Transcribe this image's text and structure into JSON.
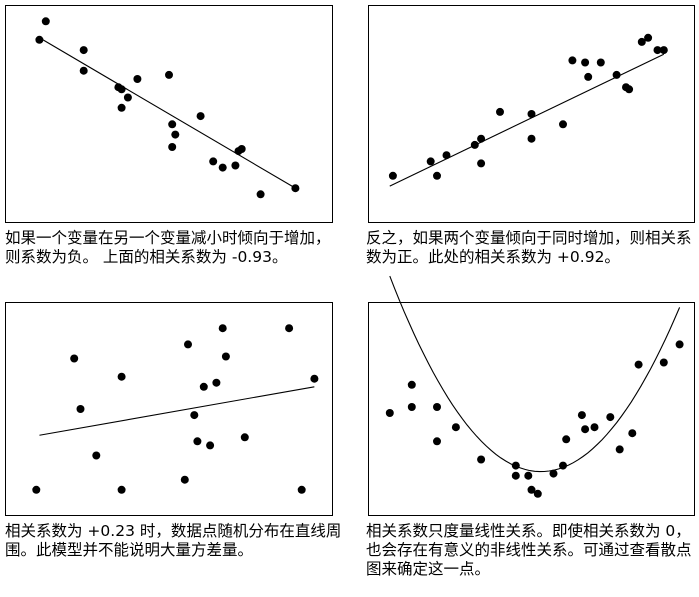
{
  "chart_data": [
    {
      "type": "scatter",
      "title": "",
      "xlim": [
        0,
        100
      ],
      "ylim": [
        0,
        100
      ],
      "grid": false,
      "points": [
        [
          9,
          86
        ],
        [
          11,
          95
        ],
        [
          23,
          81
        ],
        [
          23,
          71
        ],
        [
          34,
          63
        ],
        [
          35,
          62
        ],
        [
          35,
          53
        ],
        [
          37,
          58
        ],
        [
          40,
          67
        ],
        [
          50,
          69
        ],
        [
          51,
          45
        ],
        [
          52,
          40
        ],
        [
          51,
          34
        ],
        [
          60,
          49
        ],
        [
          64,
          27
        ],
        [
          67,
          24
        ],
        [
          71,
          25
        ],
        [
          72,
          32
        ],
        [
          73,
          33
        ],
        [
          79,
          11
        ],
        [
          90,
          14
        ]
      ],
      "fit": {
        "kind": "linear",
        "x": [
          9,
          90
        ],
        "y": [
          87,
          14
        ]
      }
    },
    {
      "type": "scatter",
      "title": "",
      "xlim": [
        0,
        100
      ],
      "ylim": [
        0,
        100
      ],
      "grid": false,
      "points": [
        [
          6,
          20
        ],
        [
          18,
          27
        ],
        [
          20,
          20
        ],
        [
          23,
          30
        ],
        [
          32,
          35
        ],
        [
          34,
          38
        ],
        [
          34,
          26
        ],
        [
          40,
          51
        ],
        [
          50,
          50
        ],
        [
          50,
          38
        ],
        [
          60,
          45
        ],
        [
          63,
          76
        ],
        [
          67,
          75
        ],
        [
          68,
          68
        ],
        [
          72,
          75
        ],
        [
          77,
          69
        ],
        [
          80,
          63
        ],
        [
          81,
          62
        ],
        [
          85,
          85
        ],
        [
          87,
          87
        ],
        [
          90,
          81
        ],
        [
          92,
          81
        ]
      ],
      "fit": {
        "kind": "linear",
        "x": [
          5,
          92
        ],
        "y": [
          15,
          79
        ]
      }
    },
    {
      "type": "scatter",
      "title": "",
      "xlim": [
        0,
        100
      ],
      "ylim": [
        0,
        100
      ],
      "grid": false,
      "points": [
        [
          8,
          10
        ],
        [
          20,
          75
        ],
        [
          22,
          50
        ],
        [
          27,
          27
        ],
        [
          35,
          66
        ],
        [
          35,
          10
        ],
        [
          55,
          15
        ],
        [
          56,
          82
        ],
        [
          59,
          34
        ],
        [
          58,
          47
        ],
        [
          61,
          61
        ],
        [
          63,
          32
        ],
        [
          65,
          63
        ],
        [
          67,
          90
        ],
        [
          68,
          76
        ],
        [
          74,
          36
        ],
        [
          88,
          90
        ],
        [
          92,
          10
        ],
        [
          96,
          65
        ]
      ],
      "fit": {
        "kond": "linear",
        "x": [
          9,
          96
        ],
        "y": [
          37,
          61
        ]
      }
    },
    {
      "type": "scatter",
      "title": "",
      "xlim": [
        0,
        100
      ],
      "ylim": [
        0,
        100
      ],
      "grid": false,
      "points": [
        [
          5,
          48
        ],
        [
          12,
          62
        ],
        [
          12,
          51
        ],
        [
          20,
          51
        ],
        [
          20,
          34
        ],
        [
          26,
          41
        ],
        [
          34,
          25
        ],
        [
          45,
          17
        ],
        [
          45,
          22
        ],
        [
          49,
          17
        ],
        [
          50,
          10
        ],
        [
          52,
          8
        ],
        [
          57,
          18
        ],
        [
          60,
          22
        ],
        [
          61,
          35
        ],
        [
          66,
          47
        ],
        [
          67,
          40
        ],
        [
          70,
          41
        ],
        [
          75,
          46
        ],
        [
          78,
          30
        ],
        [
          82,
          38
        ],
        [
          84,
          72
        ],
        [
          92,
          73
        ],
        [
          97,
          82
        ]
      ],
      "fit": {
        "kind": "quadratic",
        "a": 0.042,
        "h": 53,
        "k": 19,
        "x": [
          5,
          97
        ]
      }
    }
  ],
  "captions": [
    "如果一个变量在另一个变量减小时倾向于增加，则系数为负。 上面的相关系数为 -0.93。",
    "反之，如果两个变量倾向于同时增加，则相关系数为正。此处的相关系数为 +0.92。",
    "相关系数为 +0.23 时，数据点随机分布在直线周围。此模型并不能说明大量方差量。",
    "相关系数只度量线性关系。即使相关系数为 0，也会存在有意义的非线性关系。可通过查看散点图来确定这一点。"
  ]
}
